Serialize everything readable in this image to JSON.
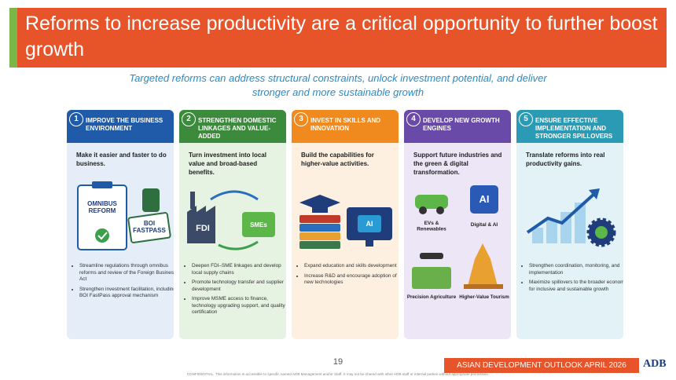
{
  "header": {
    "title": "Reforms to increase productivity are a critical opportunity to further boost growth",
    "subtitle": "Targeted reforms can address structural constraints, unlock investment potential, and deliver stronger and more sustainable growth"
  },
  "columns": [
    {
      "number": "1",
      "heading": "IMPROVE THE BUSINESS ENVIRONMENT",
      "lead": "Make it easier and faster to do business.",
      "icon_labels": [
        "OMNIBUS REFORM",
        "BOI FASTPASS"
      ],
      "bullets": [
        "Streamline regulations through omnibus reforms and review of the Foreign Business Act",
        "Strengthen investment facilitation, including BOI FastPass approval mechanism"
      ]
    },
    {
      "number": "2",
      "heading": "STRENGTHEN DOMESTIC LINKAGES AND VALUE-ADDED",
      "lead": "Turn investment into local value and broad-based benefits.",
      "icon_labels": [
        "FDI",
        "SMEs"
      ],
      "bullets": [
        "Deepen FDI–SME linkages and develop local supply chains",
        "Promote technology transfer and supplier development",
        "Improve MSME access to finance, technology upgrading support, and quality certification"
      ]
    },
    {
      "number": "3",
      "heading": "INVEST IN SKILLS AND INNOVATION",
      "lead": "Build the capabilities for higher-value activities.",
      "icon_labels": [
        "AI"
      ],
      "bullets": [
        "Expand education and skills development",
        "Increase R&D and encourage adoption of new technologies"
      ]
    },
    {
      "number": "4",
      "heading": "DEVELOP NEW GROWTH ENGINES",
      "lead": "Support future industries and the green & digital transformation.",
      "icon_labels": [
        "AI",
        "EVs & Renewables",
        "Digital & AI",
        "Precision Agriculture",
        "Higher-Value Tourism"
      ]
    },
    {
      "number": "5",
      "heading": "ENSURE EFFECTIVE IMPLEMENTATION AND STRONGER SPILLOVERS",
      "lead": "Translate reforms into real productivity gains.",
      "bullets": [
        "Strengthen coordination, monitoring, and implementation",
        "Maximize spillovers to the broader economy for inclusive and sustainable growth"
      ]
    }
  ],
  "footer": {
    "page": "19",
    "banner": "ASIAN DEVELOPMENT OUTLOOK APRIL 2026",
    "logo": "ADB",
    "notice": "CONFIDENTIAL. This information is accessible to specific named ADB Management and/or Staff. It may not be shared with other ADB staff or internal parties without appropriate permission."
  }
}
